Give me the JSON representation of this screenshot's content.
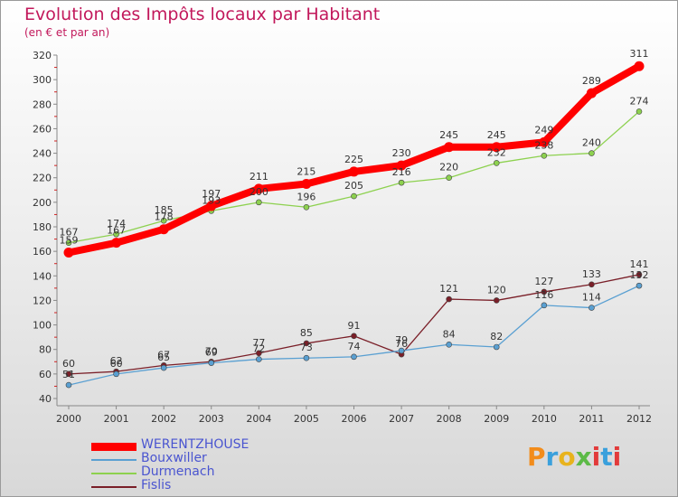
{
  "title": "Evolution des Impôts locaux par Habitant",
  "subtitle": "(en € et par an)",
  "logo_text": "Proxiti",
  "chart_data": {
    "type": "line",
    "title": "Evolution des Impôts locaux par Habitant",
    "subtitle": "(en € et par an)",
    "xlabel": "",
    "ylabel": "",
    "x": [
      2000,
      2001,
      2002,
      2003,
      2004,
      2005,
      2006,
      2007,
      2008,
      2009,
      2010,
      2011,
      2012
    ],
    "y_ticks": [
      40,
      60,
      80,
      100,
      120,
      140,
      160,
      180,
      200,
      220,
      240,
      260,
      280,
      300,
      320
    ],
    "ylim": [
      40,
      320
    ],
    "grid": false,
    "legend_position": "bottom-left",
    "series": [
      {
        "name": "WERENTZHOUSE",
        "color": "#ff0000",
        "values": [
          159,
          167,
          178,
          197,
          211,
          215,
          225,
          230,
          245,
          245,
          249,
          289,
          311
        ]
      },
      {
        "name": "Bouxwiller",
        "color": "#5aa0d2",
        "values": [
          51,
          60,
          65,
          69,
          72,
          73,
          74,
          79,
          84,
          82,
          116,
          114,
          132
        ]
      },
      {
        "name": "Durmenach",
        "color": "#8dd14f",
        "values": [
          167,
          174,
          185,
          193,
          200,
          196,
          205,
          216,
          220,
          232,
          238,
          240,
          274
        ]
      },
      {
        "name": "Fislis",
        "color": "#7a1f28",
        "values": [
          60,
          62,
          67,
          70,
          77,
          85,
          91,
          76,
          121,
          120,
          127,
          133,
          141
        ]
      }
    ]
  }
}
